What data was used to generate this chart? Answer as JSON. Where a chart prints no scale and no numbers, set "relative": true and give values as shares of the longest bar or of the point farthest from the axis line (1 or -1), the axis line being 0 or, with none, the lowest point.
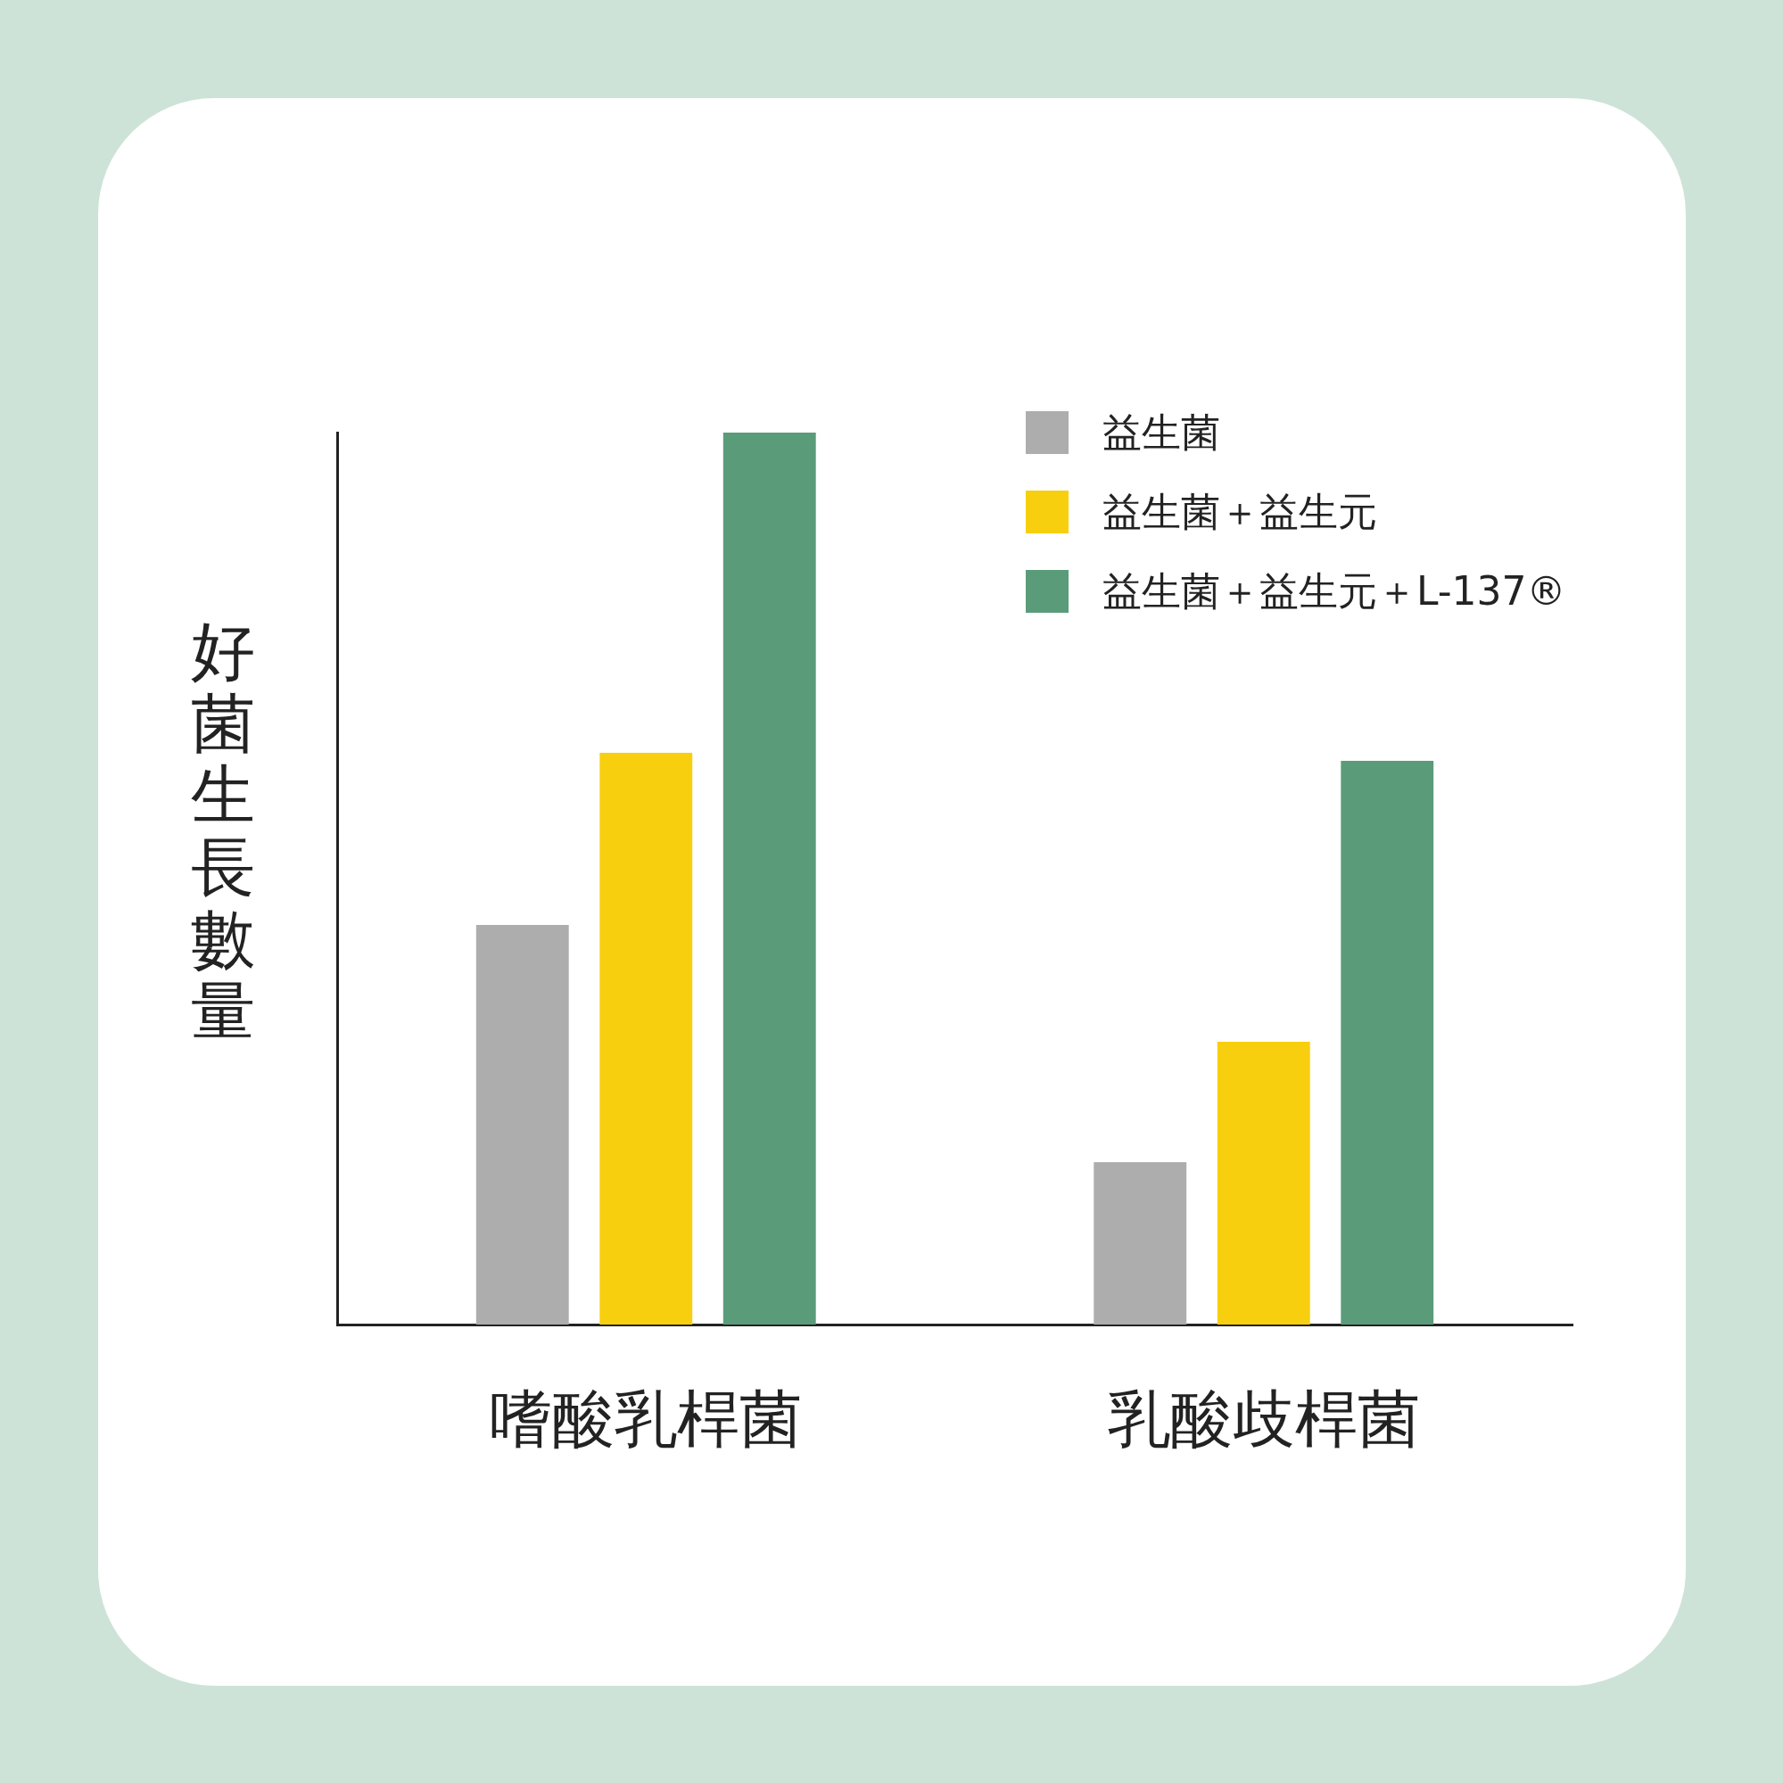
{
  "chart_data": {
    "type": "bar",
    "relative": true,
    "ylabel": "好菌生長數量",
    "categories": [
      "嗜酸乳桿菌",
      "乳酸歧桿菌"
    ],
    "legend": "top right",
    "grid": false,
    "series": [
      {
        "name": "益生菌",
        "color": "#adadad",
        "values": [
          0.448,
          0.182
        ]
      },
      {
        "name": "益生菌＋益生元",
        "color": "#f7cf0e",
        "values": [
          0.641,
          0.317
        ]
      },
      {
        "name": "益生菌＋益生元＋L-137®",
        "color": "#5a9c79",
        "values": [
          1,
          0.632
        ]
      }
    ]
  }
}
